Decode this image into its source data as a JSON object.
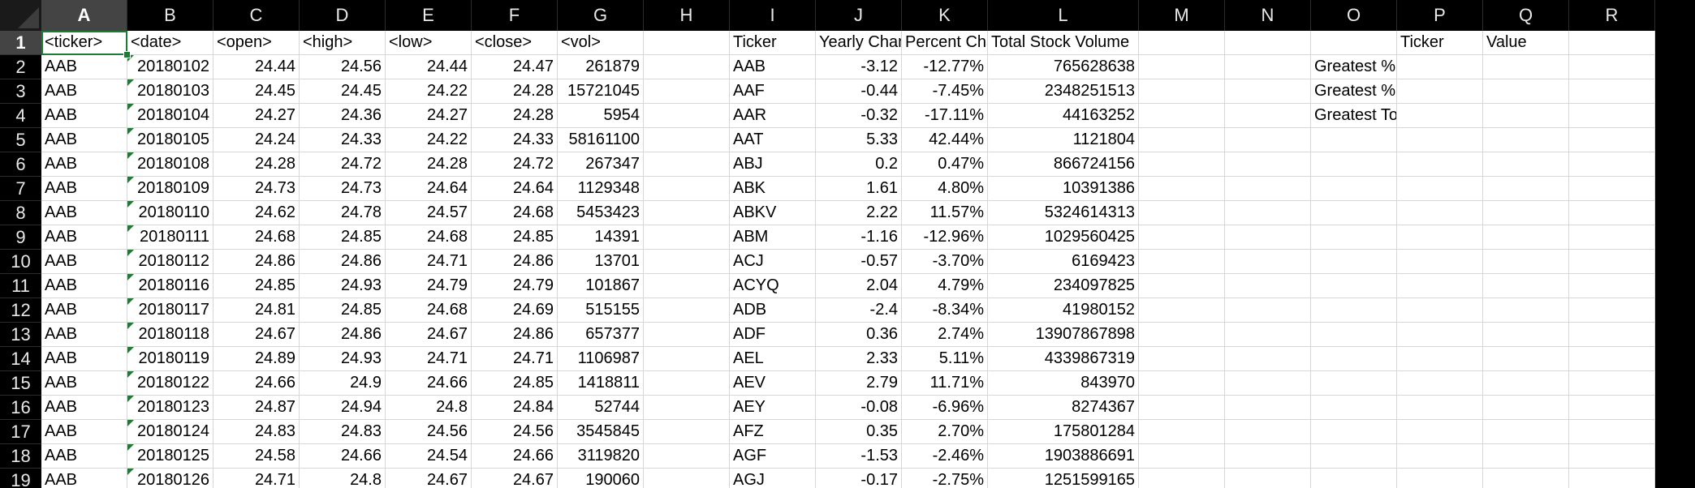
{
  "columns": [
    "A",
    "B",
    "C",
    "D",
    "E",
    "F",
    "G",
    "H",
    "I",
    "J",
    "K",
    "L",
    "M",
    "N",
    "O",
    "P",
    "Q",
    "R"
  ],
  "active_cell": "A1",
  "rows": [
    {
      "n": "1",
      "cells": [
        "<ticker>",
        "<date>",
        "<open>",
        "<high>",
        "<low>",
        "<close>",
        "<vol>",
        "",
        "Ticker",
        "Yearly Change",
        "Percent Change",
        "Total Stock Volume",
        "",
        "",
        "",
        "Ticker",
        "Value",
        ""
      ]
    },
    {
      "n": "2",
      "cells": [
        "AAB",
        "20180102",
        "24.44",
        "24.56",
        "24.44",
        "24.47",
        "261879",
        "",
        "AAB",
        "-3.12",
        "-12.77%",
        "765628638",
        "",
        "",
        "Greatest % Increase",
        "",
        "",
        ""
      ]
    },
    {
      "n": "3",
      "cells": [
        "AAB",
        "20180103",
        "24.45",
        "24.45",
        "24.22",
        "24.28",
        "15721045",
        "",
        "AAF",
        "-0.44",
        "-7.45%",
        "2348251513",
        "",
        "",
        "Greatest % Decrease",
        "",
        "",
        ""
      ]
    },
    {
      "n": "4",
      "cells": [
        "AAB",
        "20180104",
        "24.27",
        "24.36",
        "24.27",
        "24.28",
        "5954",
        "",
        "AAR",
        "-0.32",
        "-17.11%",
        "44163252",
        "",
        "",
        "Greatest Total Volume",
        "",
        "",
        ""
      ]
    },
    {
      "n": "5",
      "cells": [
        "AAB",
        "20180105",
        "24.24",
        "24.33",
        "24.22",
        "24.33",
        "58161100",
        "",
        "AAT",
        "5.33",
        "42.44%",
        "1121804",
        "",
        "",
        "",
        "",
        "",
        ""
      ]
    },
    {
      "n": "6",
      "cells": [
        "AAB",
        "20180108",
        "24.28",
        "24.72",
        "24.28",
        "24.72",
        "267347",
        "",
        "ABJ",
        "0.2",
        "0.47%",
        "866724156",
        "",
        "",
        "",
        "",
        "",
        ""
      ]
    },
    {
      "n": "7",
      "cells": [
        "AAB",
        "20180109",
        "24.73",
        "24.73",
        "24.64",
        "24.64",
        "1129348",
        "",
        "ABK",
        "1.61",
        "4.80%",
        "10391386",
        "",
        "",
        "",
        "",
        "",
        ""
      ]
    },
    {
      "n": "8",
      "cells": [
        "AAB",
        "20180110",
        "24.62",
        "24.78",
        "24.57",
        "24.68",
        "5453423",
        "",
        "ABKV",
        "2.22",
        "11.57%",
        "5324614313",
        "",
        "",
        "",
        "",
        "",
        ""
      ]
    },
    {
      "n": "9",
      "cells": [
        "AAB",
        "20180111",
        "24.68",
        "24.85",
        "24.68",
        "24.85",
        "14391",
        "",
        "ABM",
        "-1.16",
        "-12.96%",
        "1029560425",
        "",
        "",
        "",
        "",
        "",
        ""
      ]
    },
    {
      "n": "10",
      "cells": [
        "AAB",
        "20180112",
        "24.86",
        "24.86",
        "24.71",
        "24.86",
        "13701",
        "",
        "ACJ",
        "-0.57",
        "-3.70%",
        "6169423",
        "",
        "",
        "",
        "",
        "",
        ""
      ]
    },
    {
      "n": "11",
      "cells": [
        "AAB",
        "20180116",
        "24.85",
        "24.93",
        "24.79",
        "24.79",
        "101867",
        "",
        "ACYQ",
        "2.04",
        "4.79%",
        "234097825",
        "",
        "",
        "",
        "",
        "",
        ""
      ]
    },
    {
      "n": "12",
      "cells": [
        "AAB",
        "20180117",
        "24.81",
        "24.85",
        "24.68",
        "24.69",
        "515155",
        "",
        "ADB",
        "-2.4",
        "-8.34%",
        "41980152",
        "",
        "",
        "",
        "",
        "",
        ""
      ]
    },
    {
      "n": "13",
      "cells": [
        "AAB",
        "20180118",
        "24.67",
        "24.86",
        "24.67",
        "24.86",
        "657377",
        "",
        "ADF",
        "0.36",
        "2.74%",
        "13907867898",
        "",
        "",
        "",
        "",
        "",
        ""
      ]
    },
    {
      "n": "14",
      "cells": [
        "AAB",
        "20180119",
        "24.89",
        "24.93",
        "24.71",
        "24.71",
        "1106987",
        "",
        "AEL",
        "2.33",
        "5.11%",
        "4339867319",
        "",
        "",
        "",
        "",
        "",
        ""
      ]
    },
    {
      "n": "15",
      "cells": [
        "AAB",
        "20180122",
        "24.66",
        "24.9",
        "24.66",
        "24.85",
        "1418811",
        "",
        "AEV",
        "2.79",
        "11.71%",
        "843970",
        "",
        "",
        "",
        "",
        "",
        ""
      ]
    },
    {
      "n": "16",
      "cells": [
        "AAB",
        "20180123",
        "24.87",
        "24.94",
        "24.8",
        "24.84",
        "52744",
        "",
        "AEY",
        "-0.08",
        "-6.96%",
        "8274367",
        "",
        "",
        "",
        "",
        "",
        ""
      ]
    },
    {
      "n": "17",
      "cells": [
        "AAB",
        "20180124",
        "24.83",
        "24.83",
        "24.56",
        "24.56",
        "3545845",
        "",
        "AFZ",
        "0.35",
        "2.70%",
        "175801284",
        "",
        "",
        "",
        "",
        "",
        ""
      ]
    },
    {
      "n": "18",
      "cells": [
        "AAB",
        "20180125",
        "24.58",
        "24.66",
        "24.54",
        "24.66",
        "3119820",
        "",
        "AGF",
        "-1.53",
        "-2.46%",
        "1903886691",
        "",
        "",
        "",
        "",
        "",
        ""
      ]
    },
    {
      "n": "19",
      "cells": [
        "AAB",
        "20180126",
        "24.71",
        "24.8",
        "24.67",
        "24.67",
        "190060",
        "",
        "AGJ",
        "-0.17",
        "-2.75%",
        "1251599165",
        "",
        "",
        "",
        "",
        "",
        ""
      ]
    }
  ]
}
